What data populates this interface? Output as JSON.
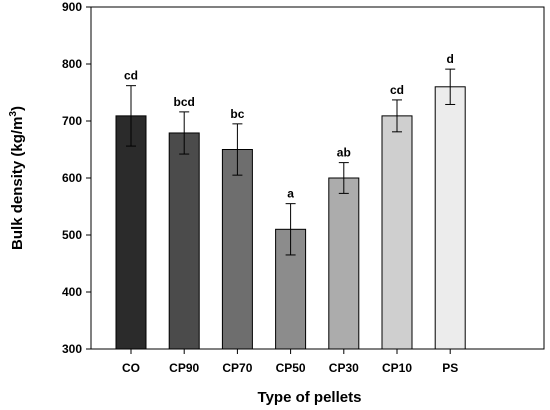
{
  "chart_data": {
    "type": "bar",
    "xlabel": "Type of pellets",
    "ylabel": "Bulk density (kg/m",
    "ylabel_superscript": "3",
    "ylabel_suffix": ")",
    "ylim": [
      300,
      900
    ],
    "yticks": [
      "300",
      "400",
      "500",
      "600",
      "700",
      "800",
      "900"
    ],
    "grid": false,
    "categories": [
      "CO",
      "CP90",
      "CP70",
      "CP50",
      "CP30",
      "CP10",
      "PS"
    ],
    "values": [
      709,
      679,
      650,
      510,
      600,
      709,
      760
    ],
    "errors": [
      53,
      37,
      45,
      45,
      27,
      28,
      31
    ],
    "significance": [
      "cd",
      "bcd",
      "bc",
      "a",
      "ab",
      "cd",
      "d"
    ],
    "bar_colors": [
      "#2b2b2b",
      "#4b4b4b",
      "#6e6e6e",
      "#8c8c8c",
      "#acacac",
      "#cfcfcf",
      "#ececec"
    ]
  }
}
